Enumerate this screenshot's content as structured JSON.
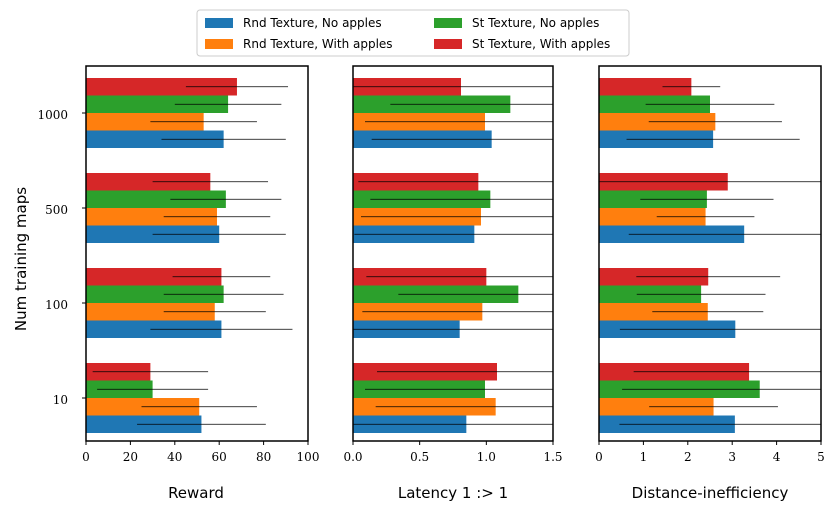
{
  "chart_data": {
    "type": "bar",
    "orientation": "horizontal",
    "ylabel": "Num training maps",
    "categories": [
      "10",
      "100",
      "500",
      "1000"
    ],
    "legend": {
      "placement": "top-center",
      "entries": [
        {
          "name": "Rnd Texture, No apples",
          "color": "#1f77b4"
        },
        {
          "name": "Rnd Texture, With apples",
          "color": "#ff7f0e"
        },
        {
          "name": "St Texture, No apples",
          "color": "#2ca02c"
        },
        {
          "name": "St Texture, With apples",
          "color": "#d62728"
        }
      ]
    },
    "series_order": [
      "Rnd Texture, No apples",
      "Rnd Texture, With apples",
      "St Texture, No apples",
      "St Texture, With apples"
    ],
    "panels": [
      {
        "id": "reward",
        "xlabel": "Reward",
        "xlim": [
          0,
          100
        ],
        "xticks": [
          0,
          20,
          40,
          60,
          80,
          100
        ],
        "xticklabels": [
          "0",
          "20",
          "40",
          "60",
          "80",
          "100"
        ],
        "series": [
          {
            "name": "Rnd Texture, No apples",
            "values": [
              52,
              61,
              60,
              62
            ],
            "err": [
              29,
              32,
              30,
              28
            ]
          },
          {
            "name": "Rnd Texture, With apples",
            "values": [
              51,
              58,
              59,
              53
            ],
            "err": [
              26,
              23,
              24,
              24
            ]
          },
          {
            "name": "St Texture, No apples",
            "values": [
              30,
              62,
              63,
              64
            ],
            "err": [
              25,
              27,
              25,
              24
            ]
          },
          {
            "name": "St Texture, With apples",
            "values": [
              29,
              61,
              56,
              68
            ],
            "err": [
              26,
              22,
              26,
              23
            ]
          }
        ]
      },
      {
        "id": "latency",
        "xlabel": "Latency 1 :> 1",
        "xlim": [
          0,
          1.5
        ],
        "xticks": [
          0,
          0.5,
          1.0,
          1.5
        ],
        "xticklabels": [
          "0.0",
          "0.5",
          "1.0",
          "1.5"
        ],
        "series": [
          {
            "name": "Rnd Texture, No apples",
            "values": [
              0.85,
              0.8,
              0.91,
              1.04
            ],
            "err": [
              0.9,
              0.9,
              0.9,
              0.9
            ]
          },
          {
            "name": "Rnd Texture, With apples",
            "values": [
              1.07,
              0.97,
              0.96,
              0.99
            ],
            "err": [
              0.9,
              0.9,
              0.9,
              0.9
            ]
          },
          {
            "name": "St Texture, No apples",
            "values": [
              0.99,
              1.24,
              1.03,
              1.18
            ],
            "err": [
              0.9,
              0.9,
              0.9,
              0.9
            ]
          },
          {
            "name": "St Texture, With apples",
            "values": [
              1.08,
              1.0,
              0.94,
              0.81
            ],
            "err": [
              0.9,
              0.9,
              0.9,
              0.9
            ]
          }
        ]
      },
      {
        "id": "distance",
        "xlabel": "Distance-inefficiency",
        "xlim": [
          0,
          5
        ],
        "xticks": [
          0,
          1,
          2,
          3,
          4,
          5
        ],
        "xticklabels": [
          "0",
          "1",
          "2",
          "3",
          "4",
          "5"
        ],
        "series": [
          {
            "name": "Rnd Texture, No apples",
            "values": [
              3.06,
              3.07,
              3.27,
              2.57
            ],
            "err": [
              2.6,
              2.6,
              2.6,
              1.95
            ]
          },
          {
            "name": "Rnd Texture, With apples",
            "values": [
              2.58,
              2.45,
              2.4,
              2.62
            ],
            "err": [
              1.45,
              1.25,
              1.1,
              1.5
            ]
          },
          {
            "name": "St Texture, No apples",
            "values": [
              3.62,
              2.3,
              2.43,
              2.5
            ],
            "err": [
              3.1,
              1.45,
              1.5,
              1.45
            ]
          },
          {
            "name": "St Texture, With apples",
            "values": [
              3.38,
              2.46,
              2.9,
              2.08
            ],
            "err": [
              2.6,
              1.62,
              3.1,
              0.65
            ]
          }
        ]
      }
    ]
  }
}
